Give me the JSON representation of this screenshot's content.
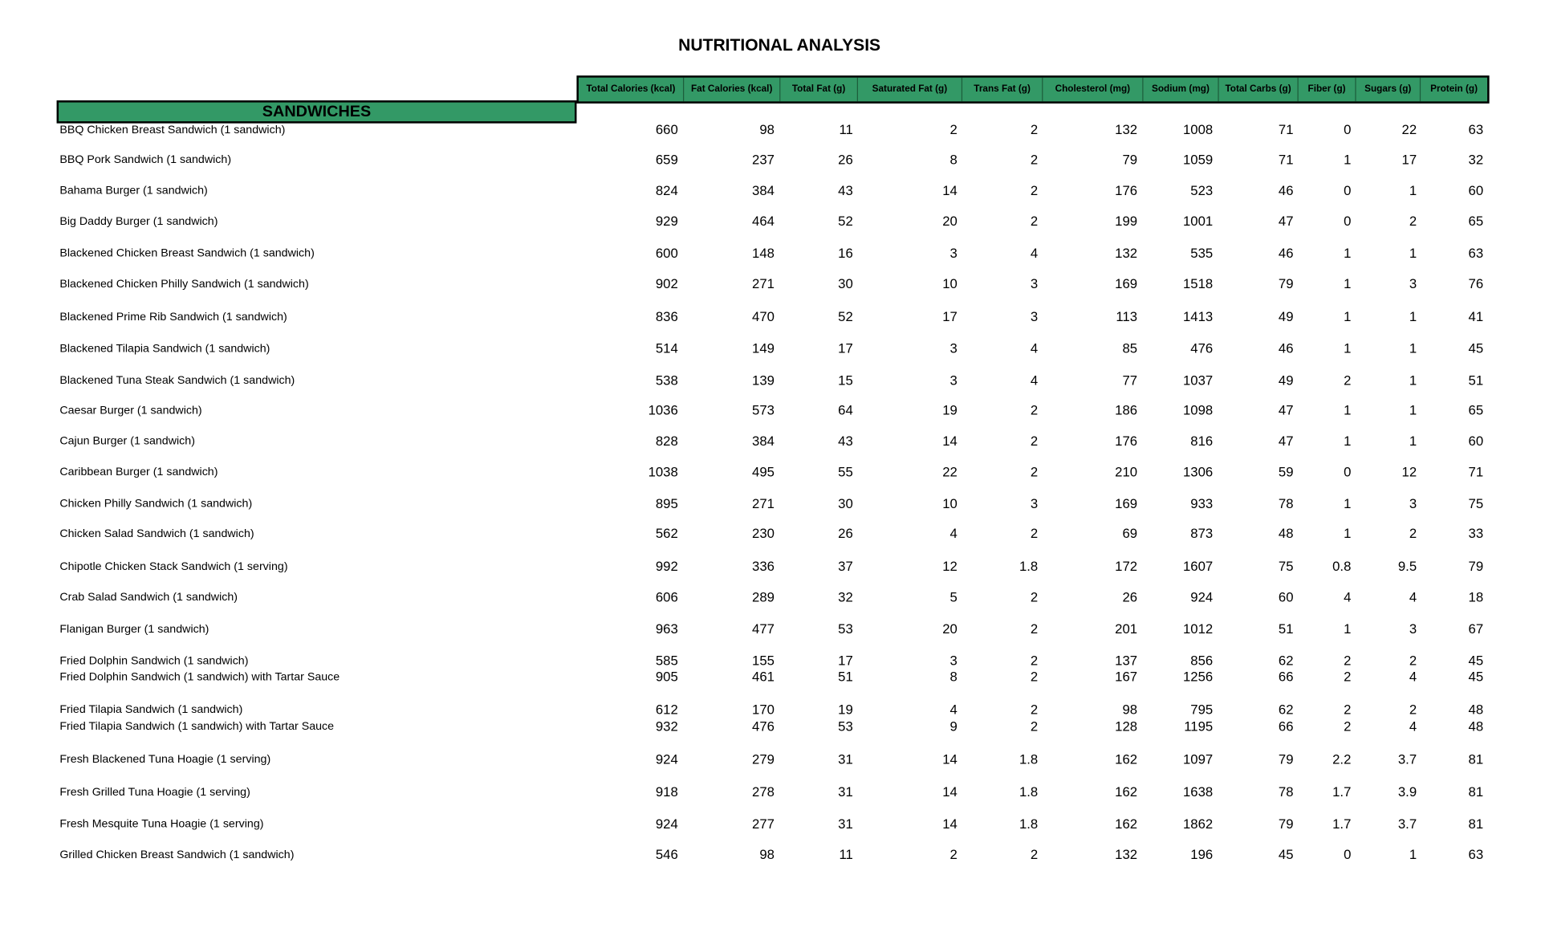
{
  "title": "NUTRITIONAL ANALYSIS",
  "columns": [
    "Total Calories (kcal)",
    "Fat Calories (kcal)",
    "Total Fat (g)",
    "Saturated Fat (g)",
    "Trans Fat (g)",
    "Cholesterol (mg)",
    "Sodium (mg)",
    "Total Carbs (g)",
    "Fiber (g)",
    "Sugars (g)",
    "Protein (g)"
  ],
  "section": "SANDWICHES",
  "colors": {
    "header_bg": "#339966",
    "border": "#000000"
  },
  "rows": [
    {
      "name": "BBQ Chicken Breast Sandwich (1 sandwich)",
      "values": [
        "660",
        "98",
        "11",
        "2",
        "2",
        "132",
        "1008",
        "71",
        "0",
        "22",
        "63"
      ]
    },
    {
      "name": "BBQ Pork Sandwich (1 sandwich)",
      "values": [
        "659",
        "237",
        "26",
        "8",
        "2",
        "79",
        "1059",
        "71",
        "1",
        "17",
        "32"
      ]
    },
    {
      "name": "Bahama Burger (1 sandwich)",
      "values": [
        "824",
        "384",
        "43",
        "14",
        "2",
        "176",
        "523",
        "46",
        "0",
        "1",
        "60"
      ]
    },
    {
      "name": "Big Daddy Burger (1 sandwich)",
      "values": [
        "929",
        "464",
        "52",
        "20",
        "2",
        "199",
        "1001",
        "47",
        "0",
        "2",
        "65"
      ]
    },
    {
      "name": "Blackened Chicken Breast Sandwich (1 sandwich)",
      "values": [
        "600",
        "148",
        "16",
        "3",
        "4",
        "132",
        "535",
        "46",
        "1",
        "1",
        "63"
      ]
    },
    {
      "name": "Blackened Chicken Philly Sandwich (1 sandwich)",
      "values": [
        "902",
        "271",
        "30",
        "10",
        "3",
        "169",
        "1518",
        "79",
        "1",
        "3",
        "76"
      ]
    },
    {
      "name": "Blackened Prime Rib Sandwich (1 sandwich)",
      "values": [
        "836",
        "470",
        "52",
        "17",
        "3",
        "113",
        "1413",
        "49",
        "1",
        "1",
        "41"
      ]
    },
    {
      "name": "Blackened Tilapia Sandwich (1 sandwich)",
      "values": [
        "514",
        "149",
        "17",
        "3",
        "4",
        "85",
        "476",
        "46",
        "1",
        "1",
        "45"
      ]
    },
    {
      "name": "Blackened Tuna Steak Sandwich (1 sandwich)",
      "values": [
        "538",
        "139",
        "15",
        "3",
        "4",
        "77",
        "1037",
        "49",
        "2",
        "1",
        "51"
      ]
    },
    {
      "name": "Caesar Burger (1 sandwich)",
      "values": [
        "1036",
        "573",
        "64",
        "19",
        "2",
        "186",
        "1098",
        "47",
        "1",
        "1",
        "65"
      ]
    },
    {
      "name": "Cajun Burger (1 sandwich)",
      "values": [
        "828",
        "384",
        "43",
        "14",
        "2",
        "176",
        "816",
        "47",
        "1",
        "1",
        "60"
      ]
    },
    {
      "name": "Caribbean Burger (1 sandwich)",
      "values": [
        "1038",
        "495",
        "55",
        "22",
        "2",
        "210",
        "1306",
        "59",
        "0",
        "12",
        "71"
      ]
    },
    {
      "name": "Chicken Philly Sandwich (1 sandwich)",
      "values": [
        "895",
        "271",
        "30",
        "10",
        "3",
        "169",
        "933",
        "78",
        "1",
        "3",
        "75"
      ]
    },
    {
      "name": "Chicken Salad Sandwich (1 sandwich)",
      "values": [
        "562",
        "230",
        "26",
        "4",
        "2",
        "69",
        "873",
        "48",
        "1",
        "2",
        "33"
      ]
    },
    {
      "name": "Chipotle Chicken Stack Sandwich (1 serving)",
      "values": [
        "992",
        "336",
        "37",
        "12",
        "1.8",
        "172",
        "1607",
        "75",
        "0.8",
        "9.5",
        "79"
      ]
    },
    {
      "name": "Crab Salad Sandwich (1 sandwich)",
      "values": [
        "606",
        "289",
        "32",
        "5",
        "2",
        "26",
        "924",
        "60",
        "4",
        "4",
        "18"
      ]
    },
    {
      "name": "Flanigan Burger (1 sandwich)",
      "values": [
        "963",
        "477",
        "53",
        "20",
        "2",
        "201",
        "1012",
        "51",
        "1",
        "3",
        "67"
      ]
    },
    {
      "name": "Fried Dolphin Sandwich (1 sandwich)",
      "values": [
        "585",
        "155",
        "17",
        "3",
        "2",
        "137",
        "856",
        "62",
        "2",
        "2",
        "45"
      ]
    },
    {
      "name": "Fried Dolphin Sandwich (1 sandwich) with Tartar Sauce",
      "values": [
        "905",
        "461",
        "51",
        "8",
        "2",
        "167",
        "1256",
        "66",
        "2",
        "4",
        "45"
      ]
    },
    {
      "name": "Fried Tilapia Sandwich (1 sandwich)",
      "values": [
        "612",
        "170",
        "19",
        "4",
        "2",
        "98",
        "795",
        "62",
        "2",
        "2",
        "48"
      ]
    },
    {
      "name": "Fried Tilapia Sandwich (1 sandwich) with Tartar Sauce",
      "values": [
        "932",
        "476",
        "53",
        "9",
        "2",
        "128",
        "1195",
        "66",
        "2",
        "4",
        "48"
      ]
    },
    {
      "name": "Fresh Blackened Tuna Hoagie (1 serving)",
      "values": [
        "924",
        "279",
        "31",
        "14",
        "1.8",
        "162",
        "1097",
        "79",
        "2.2",
        "3.7",
        "81"
      ]
    },
    {
      "name": "Fresh Grilled Tuna Hoagie (1 serving)",
      "values": [
        "918",
        "278",
        "31",
        "14",
        "1.8",
        "162",
        "1638",
        "78",
        "1.7",
        "3.9",
        "81"
      ]
    },
    {
      "name": "Fresh Mesquite Tuna Hoagie (1 serving)",
      "values": [
        "924",
        "277",
        "31",
        "14",
        "1.8",
        "162",
        "1862",
        "79",
        "1.7",
        "3.7",
        "81"
      ]
    },
    {
      "name": "Grilled Chicken Breast Sandwich (1 sandwich)",
      "values": [
        "546",
        "98",
        "11",
        "2",
        "2",
        "132",
        "196",
        "45",
        "0",
        "1",
        "63"
      ]
    }
  ]
}
